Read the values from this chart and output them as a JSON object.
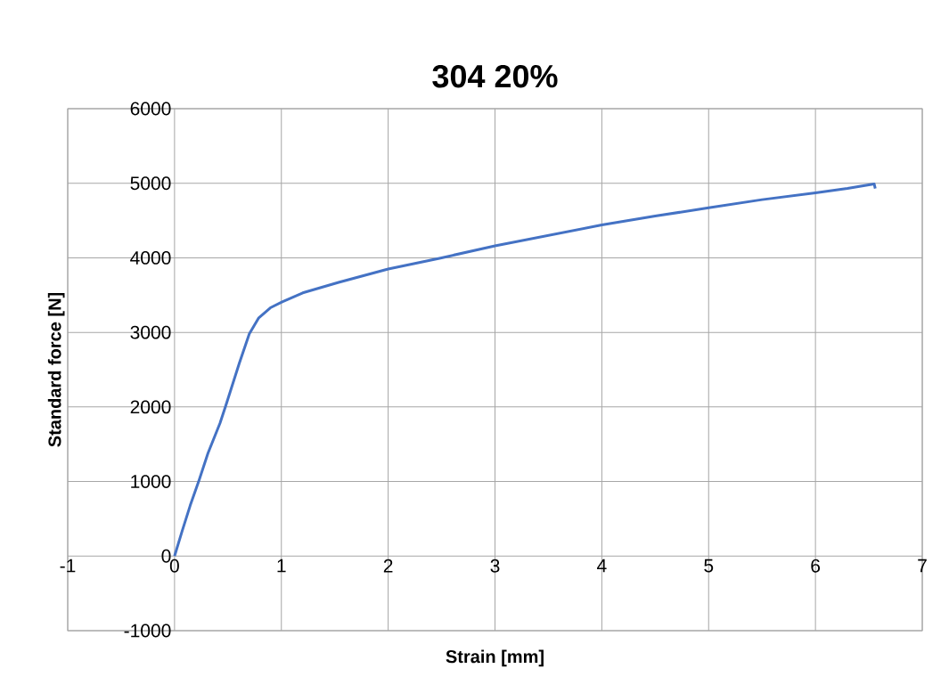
{
  "chart_data": {
    "type": "line",
    "title": "304 20%",
    "xlabel": "Strain [mm]",
    "ylabel": "Standard force [N]",
    "series": [
      {
        "color": "#4472c4",
        "x": [
          0,
          0.07,
          0.147,
          0.23,
          0.313,
          0.425,
          0.48,
          0.605,
          0.7,
          0.786,
          0.897,
          1.008,
          1.2,
          1.536,
          2,
          2.5,
          3,
          3.5,
          4,
          4.5,
          5,
          5.5,
          6,
          6.3,
          6.55,
          6.56
        ],
        "values": [
          0,
          330,
          680,
          1020,
          1380,
          1780,
          2020,
          2580,
          2980,
          3190,
          3330,
          3410,
          3530,
          3670,
          3850,
          4000,
          4160,
          4300,
          4440,
          4560,
          4670,
          4780,
          4870,
          4930,
          4990,
          4930
        ]
      }
    ],
    "xlim": [
      -1,
      7
    ],
    "ylim": [
      -1000,
      6000
    ],
    "xticks": [
      -1,
      0,
      1,
      2,
      3,
      4,
      5,
      6,
      7
    ],
    "yticks": [
      -1000,
      0,
      1000,
      2000,
      3000,
      4000,
      5000,
      6000
    ],
    "grid": true,
    "line_style": "solid",
    "marker": "none"
  }
}
